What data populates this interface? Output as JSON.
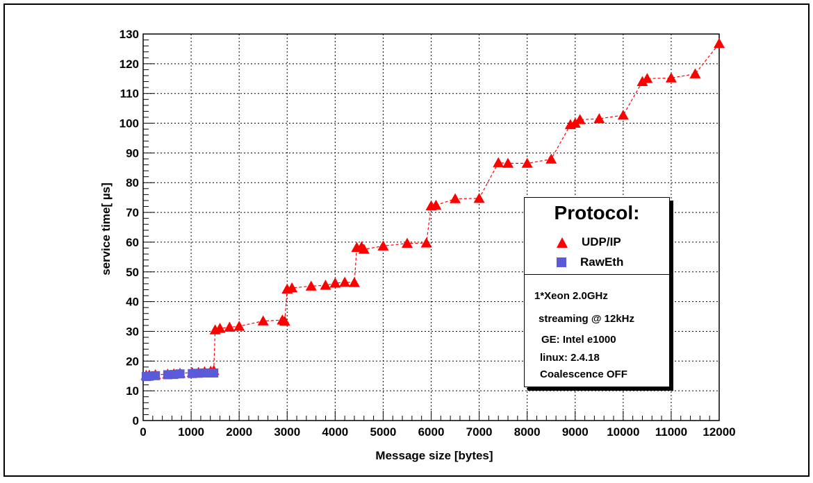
{
  "chart_data": {
    "type": "line",
    "xlabel": "Message size [bytes]",
    "ylabel": "service time[ µs]",
    "xlim": [
      0,
      12000
    ],
    "ylim": [
      0,
      130
    ],
    "x_ticks": [
      "0",
      "1000",
      "2000",
      "3000",
      "4000",
      "5000",
      "6000",
      "7000",
      "8000",
      "9000",
      "10000",
      "11000",
      "12000"
    ],
    "y_ticks": [
      "0",
      "10",
      "20",
      "30",
      "40",
      "50",
      "60",
      "70",
      "80",
      "90",
      "100",
      "110",
      "120",
      "130"
    ],
    "grid": true,
    "legend_position": "right",
    "series": [
      {
        "name": "UDP/IP",
        "marker": "triangle",
        "color": "#ff0000",
        "line_style": "dashed",
        "points": [
          [
            64,
            15.2
          ],
          [
            128,
            15.3
          ],
          [
            256,
            15.4
          ],
          [
            512,
            15.6
          ],
          [
            640,
            15.7
          ],
          [
            768,
            15.9
          ],
          [
            1024,
            16.1
          ],
          [
            1152,
            16.2
          ],
          [
            1280,
            16.4
          ],
          [
            1408,
            16.6
          ],
          [
            1472,
            16.8
          ],
          [
            1500,
            30.5
          ],
          [
            1600,
            31.0
          ],
          [
            1800,
            31.4
          ],
          [
            2000,
            31.7
          ],
          [
            2500,
            33.5
          ],
          [
            2900,
            33.8
          ],
          [
            2950,
            33.4
          ],
          [
            3000,
            44.2
          ],
          [
            3100,
            44.6
          ],
          [
            3500,
            45.2
          ],
          [
            3800,
            45.5
          ],
          [
            4000,
            46.2
          ],
          [
            4200,
            46.5
          ],
          [
            4400,
            46.4
          ],
          [
            4450,
            58.2
          ],
          [
            4550,
            58.4
          ],
          [
            4600,
            57.6
          ],
          [
            5000,
            58.7
          ],
          [
            5500,
            59.6
          ],
          [
            5900,
            59.7
          ],
          [
            6000,
            72.2
          ],
          [
            6100,
            72.4
          ],
          [
            6500,
            74.6
          ],
          [
            7000,
            74.7
          ],
          [
            7400,
            86.7
          ],
          [
            7600,
            86.5
          ],
          [
            8000,
            86.5
          ],
          [
            8500,
            87.9
          ],
          [
            8900,
            99.5
          ],
          [
            9000,
            100.0
          ],
          [
            9100,
            101.2
          ],
          [
            9500,
            101.5
          ],
          [
            10000,
            102.7
          ],
          [
            10400,
            114.0
          ],
          [
            10500,
            115.0
          ],
          [
            11000,
            115.2
          ],
          [
            11500,
            116.6
          ],
          [
            12000,
            126.8
          ]
        ]
      },
      {
        "name": "RawEth",
        "marker": "square",
        "color": "#5b5bd9",
        "line_style": "none",
        "points": [
          [
            64,
            14.8
          ],
          [
            128,
            14.9
          ],
          [
            256,
            15.1
          ],
          [
            512,
            15.4
          ],
          [
            640,
            15.5
          ],
          [
            768,
            15.7
          ],
          [
            1024,
            15.8
          ],
          [
            1152,
            15.9
          ],
          [
            1280,
            16.0
          ],
          [
            1408,
            16.0
          ],
          [
            1472,
            16.0
          ]
        ]
      }
    ]
  },
  "legend": {
    "title": "Protocol:",
    "entries": [
      "UDP/IP",
      "RawEth"
    ],
    "info_lines": [
      "1*Xeon 2.0GHz",
      "streaming @ 12kHz",
      "GE: Intel e1000",
      "linux: 2.4.18",
      "Coalescence OFF"
    ]
  },
  "colors": {
    "udp": "#ff0000",
    "raweth": "#5b5bd9",
    "grid": "#000000"
  }
}
